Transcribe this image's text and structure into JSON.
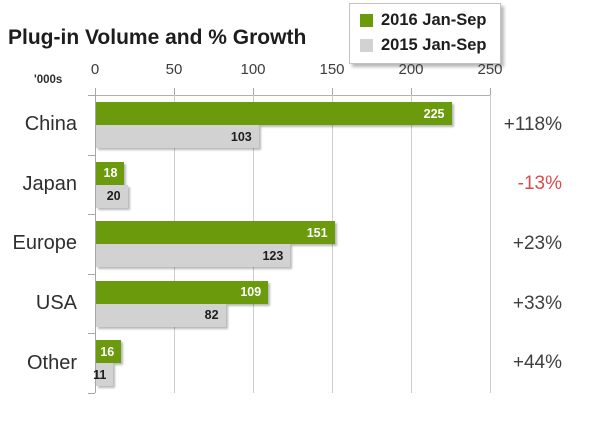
{
  "title": "Plug-in Volume and % Growth",
  "unit_label": "'000s",
  "legend": {
    "position": "top-right",
    "items": [
      {
        "label": "2016 Jan-Sep",
        "color": "#6b9b0d"
      },
      {
        "label": "2015 Jan-Sep",
        "color": "#d2d2d2"
      }
    ]
  },
  "colors": {
    "accent_green": "#6b9b0d",
    "bar_gray": "#d2d2d2",
    "growth_positive": "#3f3f3f",
    "growth_negative": "#d94c4c",
    "gridline": "#cdcdcd",
    "axis": "#a6a6a6"
  },
  "chart_data": {
    "type": "bar",
    "orientation": "horizontal",
    "title": "Plug-in Volume and % Growth",
    "xlabel": "'000s",
    "ylabel": "",
    "xlim": [
      0,
      250
    ],
    "xticks": [
      0,
      50,
      100,
      150,
      200,
      250
    ],
    "grid": true,
    "legend_position": "top-right",
    "categories": [
      "China",
      "Japan",
      "Europe",
      "USA",
      "Other"
    ],
    "series": [
      {
        "name": "2016 Jan-Sep",
        "color": "#6b9b0d",
        "label_color": "#ffffff",
        "values": [
          225,
          18,
          151,
          109,
          16
        ]
      },
      {
        "name": "2015 Jan-Sep",
        "color": "#d2d2d2",
        "label_color": "#1d1d1d",
        "values": [
          103,
          20,
          123,
          82,
          11
        ]
      }
    ],
    "growth_labels": [
      {
        "text": "+118%",
        "color": "#3f3f3f"
      },
      {
        "text": "-13%",
        "color": "#d94c4c"
      },
      {
        "text": "+23%",
        "color": "#3f3f3f"
      },
      {
        "text": "+33%",
        "color": "#3f3f3f"
      },
      {
        "text": "+44%",
        "color": "#3f3f3f"
      }
    ]
  }
}
